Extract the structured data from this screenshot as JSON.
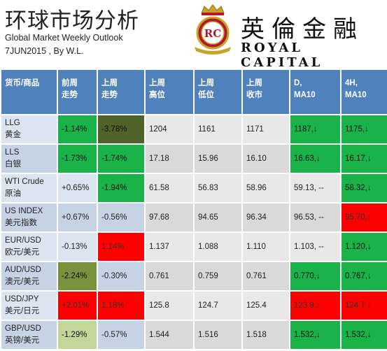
{
  "header": {
    "title_cn": "环球市场分析",
    "subtitle": "Global Market Weekly Outlook",
    "byline": "7JUN2015 , By W.L.",
    "brand_cn": "英倫金融",
    "brand_en": "ROYAL CAPITAL",
    "logo_text": "RC"
  },
  "colors": {
    "header_blue": "#4f81bd",
    "green": "#19b34a",
    "red": "#ff0000",
    "dark_olive": "#4f6228",
    "olive": "#77933c",
    "light_green": "#c4d79b"
  },
  "table": {
    "headers": [
      {
        "l1": "货币/商品",
        "l2": ""
      },
      {
        "l1": "前周",
        "l2": "走势"
      },
      {
        "l1": "上周",
        "l2": "走势"
      },
      {
        "l1": "上周",
        "l2": "高位"
      },
      {
        "l1": "上周",
        "l2": "低位"
      },
      {
        "l1": "上周",
        "l2": "收市"
      },
      {
        "l1": "D,",
        "l2": "MA10"
      },
      {
        "l1": "4H,",
        "l2": "MA10"
      }
    ],
    "rows": [
      {
        "name1": "LLG",
        "name2": "黄金",
        "prev": "-1.14%",
        "last": "-3.78%",
        "high": "1204",
        "low": "1161",
        "close": "1171",
        "d": "1187,↓",
        "h4": "1175,↓"
      },
      {
        "name1": "LLS",
        "name2": "白银",
        "prev": "-1.73%",
        "last": "-1.74%",
        "high": "17.18",
        "low": "15.96",
        "close": "16.10",
        "d": "16.63,↓",
        "h4": "16.17,↓"
      },
      {
        "name1": "WTI Crude",
        "name2": "原油",
        "prev": "+0.65%",
        "last": "-1.94%",
        "high": "61.58",
        "low": "56.83",
        "close": "58.96",
        "d": "59.13, --",
        "h4": "58.32,↓"
      },
      {
        "name1": "US INDEX",
        "name2": "美元指数",
        "prev": "+0.67%",
        "last": "-0.56%",
        "high": "97.68",
        "low": "94.65",
        "close": "96.34",
        "d": "96.53, --",
        "h4": "95.70,↑"
      },
      {
        "name1": "EUR/USD",
        "name2": "欧元/美元",
        "prev": "-0.13%",
        "last": "1.14%",
        "high": "1.137",
        "low": "1.088",
        "close": "1.110",
        "d": "1.103, --",
        "h4": "1.120,↓"
      },
      {
        "name1": "AUD/USD",
        "name2": "澳元/美元",
        "prev": "-2.24%",
        "last": "-0.30%",
        "high": "0.761",
        "low": "0.759",
        "close": "0.761",
        "d": "0.770,↓",
        "h4": "0.767,↓"
      },
      {
        "name1": "USD/JPY",
        "name2": "美元/日元",
        "prev": "+2.01%",
        "last": "1.18%",
        "high": "125.8",
        "low": "124.7",
        "close": "125.4",
        "d": "123.9,↑",
        "h4": "124.7,↑"
      },
      {
        "name1": "GBP/USD",
        "name2": "英镑/美元",
        "prev": "-1.29%",
        "last": "-0.57%",
        "high": "1.544",
        "low": "1.516",
        "close": "1.518",
        "d": "1.532,↓",
        "h4": "1.532,↓"
      }
    ]
  }
}
